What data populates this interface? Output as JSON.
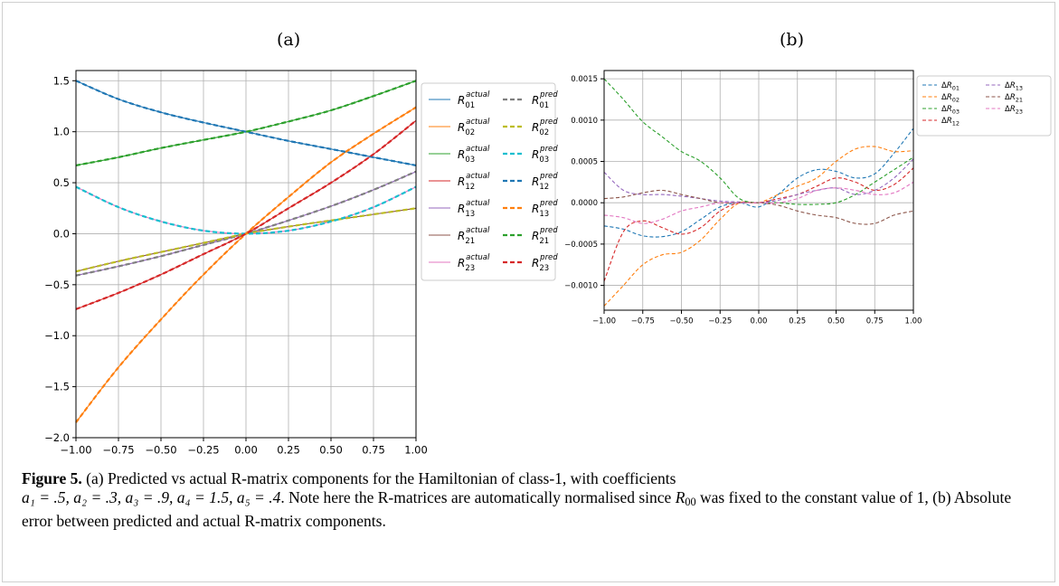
{
  "figure": {
    "label_a": "(a)",
    "label_b": "(b)",
    "caption_label": "Figure 5.",
    "caption_parts": {
      "p1": " (a) Predicted vs actual R-matrix components for the Hamiltonian of class-1, with coefficients",
      "coeffs": "a₁ = .5, a₂ = .3, a₃ = .9, a₄ = 1.5, a₅ = .4",
      "p2": ". Note here the R-matrices are automatically normalised since ",
      "r00": "R",
      "r00_sub": "00",
      "p3": " was fixed to the constant value of 1, (b) Absolute error between predicted and actual R-matrix components."
    }
  },
  "chart_data": [
    {
      "type": "line",
      "panel": "(a)",
      "xlim": [
        -1.0,
        1.0
      ],
      "ylim": [
        -2.0,
        1.6
      ],
      "grid": true,
      "legend_placement": "outside-right",
      "xticks": [
        "−1.00",
        "−0.75",
        "−0.50",
        "−0.25",
        "0.00",
        "0.25",
        "0.50",
        "0.75",
        "1.00"
      ],
      "yticks": [
        "−2.0",
        "−1.5",
        "−1.0",
        "−0.5",
        "0.0",
        "0.5",
        "1.0",
        "1.5"
      ],
      "x": [
        -1.0,
        -0.75,
        -0.5,
        -0.25,
        0.0,
        0.25,
        0.5,
        0.75,
        1.0
      ],
      "series": [
        {
          "name": "R01 actual",
          "sub": "01",
          "sup": "actual",
          "dash": false,
          "color": "#1f77b4",
          "values": [
            1.5,
            1.32,
            1.19,
            1.09,
            1.0,
            0.91,
            0.83,
            0.75,
            0.67
          ]
        },
        {
          "name": "R02 actual",
          "sub": "02",
          "sup": "actual",
          "dash": false,
          "color": "#ff7f0e",
          "values": [
            -1.85,
            -1.31,
            -0.84,
            -0.4,
            0.0,
            0.36,
            0.7,
            0.98,
            1.24
          ]
        },
        {
          "name": "R03 actual",
          "sub": "03",
          "sup": "actual",
          "dash": false,
          "color": "#2ca02c",
          "values": [
            0.67,
            0.75,
            0.84,
            0.92,
            1.0,
            1.1,
            1.21,
            1.35,
            1.5
          ]
        },
        {
          "name": "R12 actual",
          "sub": "12",
          "sup": "actual",
          "dash": false,
          "color": "#d62728",
          "values": [
            -0.74,
            -0.58,
            -0.4,
            -0.2,
            0.0,
            0.25,
            0.5,
            0.78,
            1.11
          ]
        },
        {
          "name": "R13 actual",
          "sub": "13",
          "sup": "actual",
          "dash": false,
          "color": "#9467bd",
          "values": [
            -0.41,
            -0.32,
            -0.22,
            -0.11,
            0.0,
            0.13,
            0.27,
            0.43,
            0.61
          ]
        },
        {
          "name": "R21 actual",
          "sub": "21",
          "sup": "actual",
          "dash": false,
          "color": "#8c564b",
          "values": [
            -0.37,
            -0.27,
            -0.18,
            -0.09,
            0.0,
            0.07,
            0.13,
            0.19,
            0.25
          ]
        },
        {
          "name": "R23 actual",
          "sub": "23",
          "sup": "actual",
          "dash": false,
          "color": "#e377c2",
          "values": [
            0.46,
            0.26,
            0.12,
            0.03,
            0.0,
            0.03,
            0.12,
            0.26,
            0.46
          ]
        },
        {
          "name": "R01 pred",
          "sub": "01",
          "sup": "pred",
          "dash": true,
          "color": "#7f7f7f",
          "values": [
            -0.41,
            -0.32,
            -0.22,
            -0.11,
            0.0,
            0.13,
            0.27,
            0.43,
            0.61
          ]
        },
        {
          "name": "R02 pred",
          "sub": "02",
          "sup": "pred",
          "dash": true,
          "color": "#bcbd22",
          "values": [
            -0.37,
            -0.27,
            -0.18,
            -0.09,
            0.0,
            0.07,
            0.13,
            0.19,
            0.25
          ]
        },
        {
          "name": "R03 pred",
          "sub": "03",
          "sup": "pred",
          "dash": true,
          "color": "#17becf",
          "values": [
            0.46,
            0.26,
            0.12,
            0.03,
            0.0,
            0.03,
            0.12,
            0.26,
            0.46
          ]
        },
        {
          "name": "R12 pred",
          "sub": "12",
          "sup": "pred",
          "dash": true,
          "color": "#1f77b4",
          "values": [
            1.5,
            1.32,
            1.19,
            1.09,
            1.0,
            0.91,
            0.83,
            0.75,
            0.67
          ]
        },
        {
          "name": "R13 pred",
          "sub": "13",
          "sup": "pred",
          "dash": true,
          "color": "#ff7f0e",
          "values": [
            -1.85,
            -1.31,
            -0.84,
            -0.4,
            0.0,
            0.36,
            0.7,
            0.98,
            1.24
          ]
        },
        {
          "name": "R21 pred",
          "sub": "21",
          "sup": "pred",
          "dash": true,
          "color": "#2ca02c",
          "values": [
            0.67,
            0.75,
            0.84,
            0.92,
            1.0,
            1.1,
            1.21,
            1.35,
            1.5
          ]
        },
        {
          "name": "R23 pred",
          "sub": "23",
          "sup": "pred",
          "dash": true,
          "color": "#d62728",
          "values": [
            -0.74,
            -0.58,
            -0.4,
            -0.2,
            0.0,
            0.25,
            0.5,
            0.78,
            1.11
          ]
        }
      ]
    },
    {
      "type": "line",
      "panel": "(b)",
      "xlim": [
        -1.0,
        1.0
      ],
      "ylim": [
        -0.0013,
        0.0016
      ],
      "grid": true,
      "legend_placement": "outside-right",
      "xticks": [
        "−1.00",
        "−0.75",
        "−0.50",
        "−0.25",
        "0.00",
        "0.25",
        "0.50",
        "0.75",
        "1.00"
      ],
      "yticks": [
        "−0.0010",
        "−0.0005",
        "0.0000",
        "0.0005",
        "0.0010",
        "0.0015"
      ],
      "x": [
        -1.0,
        -0.875,
        -0.75,
        -0.625,
        -0.5,
        -0.375,
        -0.25,
        -0.125,
        0.0,
        0.125,
        0.25,
        0.375,
        0.5,
        0.625,
        0.75,
        0.875,
        1.0
      ],
      "series": [
        {
          "name": "ΔR01",
          "sub": "01",
          "color": "#1f77b4",
          "values": [
            -0.00028,
            -0.00032,
            -0.0004,
            -0.00041,
            -0.00035,
            -0.0002,
            -5e-05,
            0.0,
            -5e-05,
            0.0001,
            0.0003,
            0.0004,
            0.00038,
            0.0003,
            0.00035,
            0.0006,
            0.0009
          ]
        },
        {
          "name": "ΔR02",
          "sub": "02",
          "color": "#ff7f0e",
          "values": [
            -0.00125,
            -0.001,
            -0.00075,
            -0.00063,
            -0.0006,
            -0.00045,
            -0.0002,
            0.0,
            0.0,
            0.0001,
            0.0002,
            0.0003,
            0.0005,
            0.00065,
            0.00068,
            0.00062,
            0.00063
          ]
        },
        {
          "name": "ΔR03",
          "sub": "03",
          "color": "#2ca02c",
          "values": [
            0.0015,
            0.00125,
            0.00098,
            0.0008,
            0.00062,
            0.0005,
            0.0003,
            5e-05,
            0.0,
            0.0,
            -2e-05,
            -2e-05,
            0.0,
            0.0001,
            0.00025,
            0.0004,
            0.00055
          ]
        },
        {
          "name": "ΔR12",
          "sub": "12",
          "color": "#d62728",
          "values": [
            -0.00095,
            -0.00035,
            -0.00022,
            -0.0003,
            -0.00038,
            -0.0003,
            -0.0001,
            0.0,
            0.0,
            5e-05,
            0.0001,
            0.0002,
            0.0003,
            0.00025,
            0.00015,
            0.00022,
            0.00042
          ]
        },
        {
          "name": "ΔR13",
          "sub": "13",
          "color": "#9467bd",
          "values": [
            0.00037,
            0.00015,
            0.0001,
            0.0001,
            8e-05,
            5e-05,
            2e-05,
            1e-05,
            0.0,
            3e-05,
            0.0001,
            0.00015,
            0.00018,
            0.0001,
            0.00015,
            0.0003,
            0.00053
          ]
        },
        {
          "name": "ΔR21",
          "sub": "21",
          "color": "#8c564b",
          "values": [
            5e-05,
            7e-05,
            0.00012,
            0.00015,
            0.0001,
            5e-05,
            0.0,
            0.0,
            0.0,
            -3e-05,
            -0.0001,
            -0.00015,
            -0.00018,
            -0.00025,
            -0.00025,
            -0.00015,
            -0.0001
          ]
        },
        {
          "name": "ΔR23",
          "sub": "23",
          "color": "#e377c2",
          "values": [
            -0.00015,
            -0.00018,
            -0.00025,
            -0.0002,
            -0.0001,
            -5e-05,
            0.0,
            0.0,
            0.0,
            0.0,
            5e-05,
            0.00015,
            0.00018,
            0.00015,
            0.0001,
            0.00012,
            0.00025
          ]
        }
      ]
    }
  ]
}
